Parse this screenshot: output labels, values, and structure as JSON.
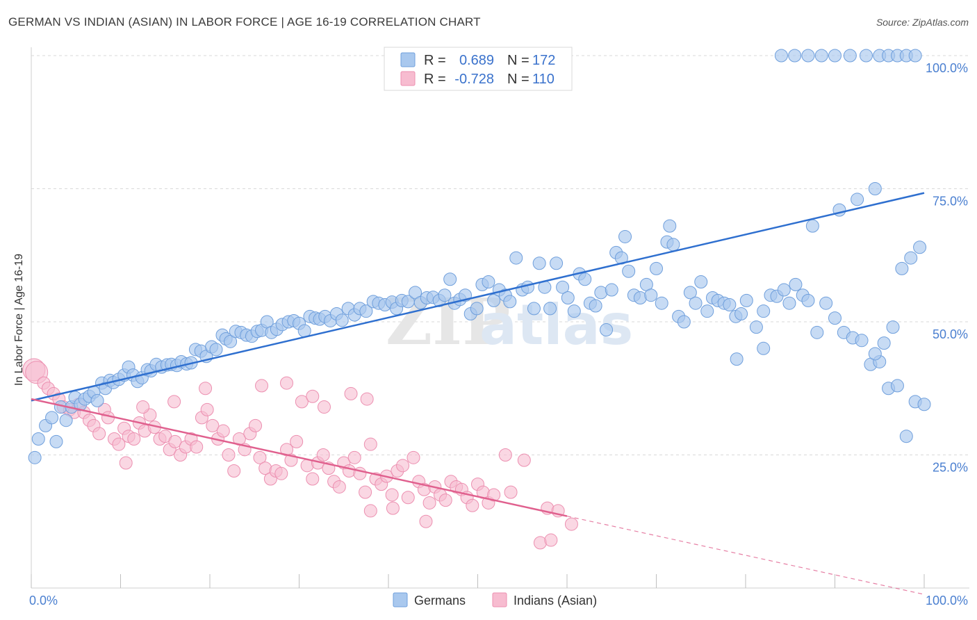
{
  "title": "GERMAN VS INDIAN (ASIAN) IN LABOR FORCE | AGE 16-19 CORRELATION CHART",
  "source": "Source: ZipAtlas.com",
  "watermark": "ZIPatlas",
  "colors": {
    "german_fill": "#a9c8ee",
    "german_stroke": "#6f9fdc",
    "german_line": "#2e6fcf",
    "indian_fill": "#f7bcd0",
    "indian_stroke": "#ec8fb0",
    "indian_line": "#e0608e",
    "grid": "#d9d9d9",
    "axis_text": "#4a7fd0"
  },
  "legend": {
    "rows": [
      {
        "r_label": "R =",
        "r_value": "0.689",
        "n_label": "N =",
        "n_value": "172"
      },
      {
        "r_label": "R =",
        "r_value": "-0.728",
        "n_label": "N =",
        "n_value": "110"
      }
    ]
  },
  "bottom_legend": [
    "Germans",
    "Indians (Asian)"
  ],
  "chart_data": {
    "type": "scatter",
    "title": "GERMAN VS INDIAN (ASIAN) IN LABOR FORCE | AGE 16-19 CORRELATION CHART",
    "xlabel": "",
    "ylabel": "In Labor Force | Age 16-19",
    "xlim": [
      0,
      100
    ],
    "ylim": [
      0,
      102
    ],
    "x_tick_labels": [
      "0.0%",
      "100.0%"
    ],
    "y_tick_labels": [
      "25.0%",
      "50.0%",
      "75.0%",
      "100.0%"
    ],
    "y_ticks": [
      25,
      50,
      75,
      100
    ],
    "grid": true,
    "legend_position": "top-center",
    "series": [
      {
        "name": "Germans",
        "r": 0.689,
        "n": 172,
        "trend": {
          "x": [
            0,
            100
          ],
          "y": [
            35.2,
            74.2
          ]
        },
        "points": [
          [
            0.4,
            24.5
          ],
          [
            0.8,
            28
          ],
          [
            1.6,
            30.5
          ],
          [
            2.3,
            32
          ],
          [
            2.8,
            27.5
          ],
          [
            3.3,
            34
          ],
          [
            3.9,
            31.5
          ],
          [
            4.5,
            34
          ],
          [
            4.9,
            35.8
          ],
          [
            5.5,
            34.5
          ],
          [
            6.0,
            35.5
          ],
          [
            6.5,
            36
          ],
          [
            7.0,
            36.8
          ],
          [
            7.4,
            35.2
          ],
          [
            7.9,
            38.5
          ],
          [
            8.3,
            37.5
          ],
          [
            8.8,
            39
          ],
          [
            9.2,
            38.6
          ],
          [
            9.8,
            39.2
          ],
          [
            10.4,
            40
          ],
          [
            10.9,
            41.5
          ],
          [
            11.4,
            40
          ],
          [
            11.9,
            38.8
          ],
          [
            12.4,
            39.5
          ],
          [
            13.0,
            41
          ],
          [
            13.4,
            40.8
          ],
          [
            14.0,
            42
          ],
          [
            14.6,
            41.5
          ],
          [
            15.2,
            41.9
          ],
          [
            15.7,
            42
          ],
          [
            16.3,
            41.8
          ],
          [
            16.8,
            42.5
          ],
          [
            17.4,
            42.1
          ],
          [
            17.9,
            42.3
          ],
          [
            18.4,
            44.8
          ],
          [
            19.0,
            44.5
          ],
          [
            19.6,
            43.5
          ],
          [
            20.2,
            45.3
          ],
          [
            20.7,
            44.8
          ],
          [
            21.4,
            47.5
          ],
          [
            21.8,
            46.8
          ],
          [
            22.3,
            46.3
          ],
          [
            22.9,
            48.2
          ],
          [
            23.5,
            48
          ],
          [
            24.1,
            47.5
          ],
          [
            24.7,
            47.3
          ],
          [
            25.3,
            48.2
          ],
          [
            25.8,
            48.4
          ],
          [
            26.4,
            50
          ],
          [
            26.9,
            48
          ],
          [
            27.5,
            48.6
          ],
          [
            28.1,
            49.5
          ],
          [
            28.8,
            50
          ],
          [
            29.4,
            50.2
          ],
          [
            30.0,
            49.7
          ],
          [
            30.6,
            48.3
          ],
          [
            31.2,
            51
          ],
          [
            31.8,
            50.7
          ],
          [
            32.3,
            50.5
          ],
          [
            32.9,
            51
          ],
          [
            33.5,
            50.2
          ],
          [
            34.2,
            51.5
          ],
          [
            34.8,
            50.3
          ],
          [
            35.5,
            52.5
          ],
          [
            36.2,
            51.3
          ],
          [
            36.8,
            52.5
          ],
          [
            37.5,
            52
          ],
          [
            38.3,
            53.8
          ],
          [
            38.9,
            53.5
          ],
          [
            39.6,
            53.2
          ],
          [
            40.4,
            53.7
          ],
          [
            40.9,
            52.5
          ],
          [
            41.5,
            54
          ],
          [
            42.2,
            53.8
          ],
          [
            43.0,
            55.5
          ],
          [
            43.6,
            53.6
          ],
          [
            44.3,
            54.5
          ],
          [
            45.0,
            54.6
          ],
          [
            45.7,
            54
          ],
          [
            46.3,
            55
          ],
          [
            46.9,
            58
          ],
          [
            47.4,
            53.5
          ],
          [
            48.0,
            54.2
          ],
          [
            48.6,
            55
          ],
          [
            49.2,
            51.5
          ],
          [
            49.9,
            52.5
          ],
          [
            50.5,
            57
          ],
          [
            51.2,
            57.5
          ],
          [
            51.8,
            54
          ],
          [
            52.4,
            56
          ],
          [
            53.1,
            55
          ],
          [
            53.6,
            53.8
          ],
          [
            54.3,
            62
          ],
          [
            55.0,
            56
          ],
          [
            55.6,
            56.5
          ],
          [
            56.3,
            52.5
          ],
          [
            56.9,
            61
          ],
          [
            57.5,
            56.5
          ],
          [
            58.1,
            52.5
          ],
          [
            58.8,
            61
          ],
          [
            59.5,
            56.5
          ],
          [
            60.1,
            54.5
          ],
          [
            60.8,
            52
          ],
          [
            61.4,
            59
          ],
          [
            62.0,
            58
          ],
          [
            62.6,
            53.5
          ],
          [
            63.2,
            53
          ],
          [
            63.8,
            55.5
          ],
          [
            64.4,
            48.5
          ],
          [
            65.0,
            56
          ],
          [
            65.5,
            63
          ],
          [
            66.1,
            62
          ],
          [
            66.9,
            59.5
          ],
          [
            67.5,
            55
          ],
          [
            68.2,
            54.5
          ],
          [
            68.9,
            57
          ],
          [
            69.4,
            55
          ],
          [
            70.0,
            60
          ],
          [
            70.6,
            53.5
          ],
          [
            71.2,
            65
          ],
          [
            71.9,
            64.5
          ],
          [
            72.5,
            51
          ],
          [
            73.1,
            50
          ],
          [
            73.8,
            55.5
          ],
          [
            74.4,
            53.5
          ],
          [
            75.0,
            57.5
          ],
          [
            75.7,
            52
          ],
          [
            76.3,
            54.5
          ],
          [
            76.9,
            54
          ],
          [
            77.6,
            53.5
          ],
          [
            78.2,
            53.2
          ],
          [
            78.9,
            51
          ],
          [
            79.5,
            51.5
          ],
          [
            80.1,
            54
          ],
          [
            81.2,
            49
          ],
          [
            82.0,
            52
          ],
          [
            82.8,
            55
          ],
          [
            83.5,
            54.8
          ],
          [
            84.3,
            56
          ],
          [
            84.9,
            53.5
          ],
          [
            85.6,
            57
          ],
          [
            86.4,
            55
          ],
          [
            87.0,
            54
          ],
          [
            88.0,
            48
          ],
          [
            89.0,
            53.5
          ],
          [
            90.0,
            50.7
          ],
          [
            91.0,
            48
          ],
          [
            92.0,
            47
          ],
          [
            93.0,
            46.5
          ],
          [
            94.0,
            42
          ],
          [
            95.0,
            42.5
          ],
          [
            96.0,
            37.5
          ],
          [
            97.0,
            38
          ],
          [
            98.0,
            28.5
          ],
          [
            99.0,
            35
          ],
          [
            100.0,
            34.5
          ],
          [
            94.5,
            44
          ],
          [
            95.5,
            46
          ],
          [
            96.5,
            49
          ],
          [
            97.5,
            60
          ],
          [
            98.5,
            62
          ],
          [
            99.5,
            64
          ],
          [
            87.5,
            68
          ],
          [
            90.5,
            71
          ],
          [
            92.5,
            73
          ],
          [
            94.5,
            75
          ],
          [
            71.5,
            68
          ],
          [
            66.5,
            66
          ],
          [
            82.0,
            45
          ],
          [
            79.0,
            43
          ],
          [
            84.0,
            100
          ],
          [
            85.5,
            100
          ],
          [
            87.0,
            100
          ],
          [
            88.5,
            100
          ],
          [
            90.0,
            100
          ],
          [
            91.7,
            100
          ],
          [
            93.5,
            100
          ],
          [
            95.0,
            100
          ],
          [
            96.0,
            100
          ],
          [
            97.0,
            100
          ],
          [
            98.0,
            100
          ],
          [
            99.0,
            100
          ]
        ]
      },
      {
        "name": "Indians (Asian)",
        "r": -0.728,
        "n": 110,
        "trend": {
          "x": [
            0,
            60
          ],
          "y": [
            35.5,
            13.5
          ]
        },
        "trend_extended": {
          "x": [
            60,
            100
          ],
          "y": [
            13.5,
            -1.2
          ]
        },
        "points": [
          [
            0.3,
            41
          ],
          [
            0.6,
            40.5
          ],
          [
            1.4,
            38.5
          ],
          [
            1.9,
            37.5
          ],
          [
            2.5,
            36.5
          ],
          [
            3.1,
            35.5
          ],
          [
            3.6,
            34
          ],
          [
            4.3,
            33.5
          ],
          [
            4.8,
            33
          ],
          [
            5.3,
            34.5
          ],
          [
            5.9,
            33
          ],
          [
            6.5,
            31.5
          ],
          [
            7.0,
            30.5
          ],
          [
            7.6,
            29
          ],
          [
            8.2,
            33.5
          ],
          [
            8.6,
            32
          ],
          [
            9.3,
            28
          ],
          [
            9.8,
            27
          ],
          [
            10.4,
            30
          ],
          [
            10.9,
            28.5
          ],
          [
            11.5,
            28
          ],
          [
            12.1,
            31
          ],
          [
            12.7,
            29.5
          ],
          [
            13.3,
            32.5
          ],
          [
            13.8,
            30.2
          ],
          [
            14.4,
            28
          ],
          [
            15.0,
            28.5
          ],
          [
            15.5,
            26
          ],
          [
            16.1,
            27.5
          ],
          [
            16.7,
            25
          ],
          [
            17.3,
            26.5
          ],
          [
            17.9,
            28
          ],
          [
            18.5,
            26.5
          ],
          [
            19.1,
            32
          ],
          [
            19.7,
            33.5
          ],
          [
            20.3,
            30.5
          ],
          [
            20.9,
            28
          ],
          [
            21.5,
            29.5
          ],
          [
            22.1,
            25
          ],
          [
            22.7,
            22
          ],
          [
            23.3,
            28
          ],
          [
            23.9,
            26
          ],
          [
            24.5,
            29
          ],
          [
            25.1,
            30.5
          ],
          [
            25.6,
            24.5
          ],
          [
            26.2,
            22.5
          ],
          [
            26.8,
            20.5
          ],
          [
            27.4,
            22
          ],
          [
            28.0,
            21.5
          ],
          [
            28.6,
            26
          ],
          [
            29.1,
            24
          ],
          [
            29.7,
            27.5
          ],
          [
            30.3,
            35
          ],
          [
            30.9,
            23
          ],
          [
            31.5,
            20.5
          ],
          [
            32.1,
            23.5
          ],
          [
            32.7,
            25
          ],
          [
            33.3,
            22.5
          ],
          [
            33.9,
            20
          ],
          [
            34.5,
            19
          ],
          [
            35.0,
            23.5
          ],
          [
            35.6,
            22
          ],
          [
            36.2,
            24.5
          ],
          [
            36.8,
            21.5
          ],
          [
            37.4,
            18
          ],
          [
            38.0,
            27
          ],
          [
            38.6,
            20.5
          ],
          [
            39.2,
            19.5
          ],
          [
            39.8,
            21
          ],
          [
            40.4,
            17.5
          ],
          [
            41.0,
            22
          ],
          [
            41.6,
            23
          ],
          [
            42.2,
            17
          ],
          [
            42.8,
            24.5
          ],
          [
            43.4,
            20
          ],
          [
            44.0,
            18.5
          ],
          [
            44.6,
            16
          ],
          [
            45.2,
            19
          ],
          [
            45.8,
            17.5
          ],
          [
            46.4,
            16.5
          ],
          [
            47.0,
            20
          ],
          [
            47.6,
            19
          ],
          [
            48.2,
            18.5
          ],
          [
            48.8,
            17
          ],
          [
            49.4,
            15.5
          ],
          [
            50.0,
            19.5
          ],
          [
            50.6,
            18
          ],
          [
            51.2,
            16
          ],
          [
            51.8,
            17.5
          ],
          [
            53.1,
            25
          ],
          [
            53.7,
            18
          ],
          [
            55.2,
            24
          ],
          [
            57.8,
            15
          ],
          [
            59.0,
            14.5
          ],
          [
            60.5,
            12
          ],
          [
            57.0,
            8.5
          ],
          [
            58.2,
            9
          ],
          [
            44.2,
            12.5
          ],
          [
            40.5,
            15
          ],
          [
            38.0,
            14.5
          ],
          [
            31.5,
            36
          ],
          [
            32.8,
            34
          ],
          [
            35.8,
            36.5
          ],
          [
            37.6,
            35.5
          ],
          [
            10.6,
            23.5
          ],
          [
            12.5,
            34
          ],
          [
            16.0,
            35
          ],
          [
            19.5,
            37.5
          ],
          [
            25.8,
            38
          ],
          [
            28.6,
            38.5
          ]
        ]
      }
    ]
  }
}
